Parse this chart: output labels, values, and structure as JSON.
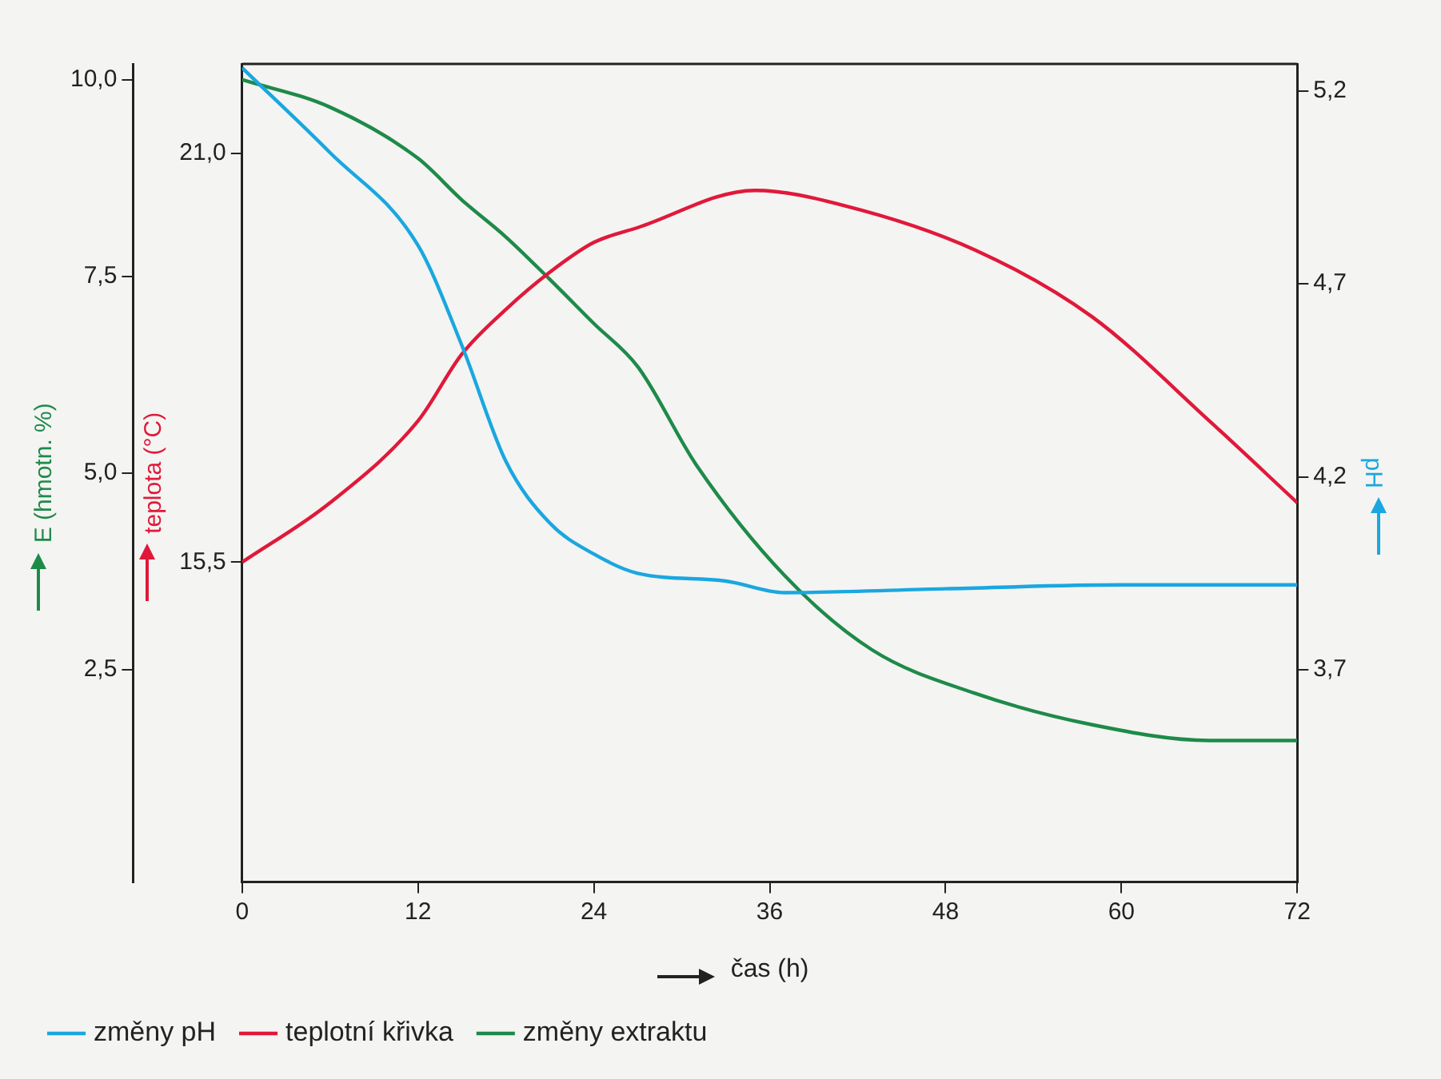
{
  "chart_data": {
    "type": "line",
    "xlabel": "čas (h)",
    "ylabel": "E (hmotn. %)",
    "y2label": "teplota (°C)",
    "y3label": "pH",
    "xlim": [
      0,
      72
    ],
    "xticks": [
      0,
      12,
      24,
      36,
      48,
      60,
      72
    ],
    "ylim": [
      -0.2,
      10.2
    ],
    "yticks": [
      {
        "value": 2.5,
        "label": "2,5"
      },
      {
        "value": 5,
        "label": "5,0"
      },
      {
        "value": 7.5,
        "label": "7,5"
      },
      {
        "value": 10,
        "label": "10,0"
      }
    ],
    "y2lim": [
      11.2,
      22.2
    ],
    "y2ticks": [
      {
        "value": 15.5,
        "label": "15,5"
      },
      {
        "value": 21,
        "label": "21,0"
      }
    ],
    "y3lim": [
      3.15,
      5.27
    ],
    "y3ticks": [
      {
        "value": 3.7,
        "label": "3,7"
      },
      {
        "value": 4.2,
        "label": "4,2"
      },
      {
        "value": 4.7,
        "label": "4,7"
      },
      {
        "value": 5.2,
        "label": "5,2"
      }
    ],
    "grid": false,
    "legend": "bottom",
    "marker": "none",
    "line_style": "solid",
    "series": [
      {
        "name": "změny pH",
        "color": "#1aa7e0",
        "axis": "y3",
        "x": [
          0,
          6,
          12,
          15,
          18,
          21,
          24,
          27,
          33,
          37,
          48,
          60,
          72
        ],
        "values": [
          5.26,
          5.04,
          4.8,
          4.54,
          4.24,
          4.08,
          4.0,
          3.95,
          3.93,
          3.9,
          3.91,
          3.92,
          3.92
        ]
      },
      {
        "name": "teplotní křivka",
        "color": "#e0193a",
        "axis": "y2",
        "x": [
          0,
          6,
          12,
          15,
          18,
          21,
          24,
          27,
          35,
          41,
          50,
          58,
          66,
          72
        ],
        "values": [
          15.5,
          16.3,
          17.4,
          18.3,
          18.9,
          19.4,
          19.8,
          20.0,
          20.5,
          20.3,
          19.7,
          18.8,
          17.4,
          16.3
        ]
      },
      {
        "name": "změny extraktu",
        "color": "#1e8a4a",
        "x": [
          0,
          6,
          12,
          15,
          18,
          21,
          24,
          27,
          31,
          37,
          43,
          50,
          58,
          66,
          72
        ],
        "values": [
          10,
          9.65,
          9.0,
          8.47,
          8.0,
          7.46,
          6.9,
          6.35,
          5.1,
          3.7,
          2.75,
          2.2,
          1.8,
          1.6,
          1.6
        ]
      }
    ]
  }
}
